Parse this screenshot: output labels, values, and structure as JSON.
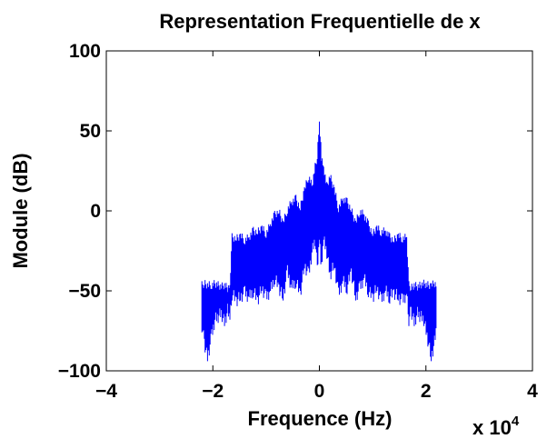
{
  "chart_data": {
    "type": "line",
    "title": "Representation Frequentielle de x",
    "xlabel": "Frequence (Hz)",
    "ylabel": "Module (dB)",
    "x_scale_label": {
      "base": "x 10",
      "exponent": "4"
    },
    "xlim": [
      -40000,
      40000
    ],
    "ylim": [
      -100,
      100
    ],
    "xticks": [
      -40000,
      -20000,
      0,
      20000,
      40000
    ],
    "xtick_labels": [
      "−4",
      "−2",
      "0",
      "2",
      "4"
    ],
    "yticks": [
      -100,
      -50,
      0,
      50,
      100
    ],
    "ytick_labels": [
      "−100",
      "−50",
      "0",
      "50",
      "100"
    ],
    "grid": false,
    "series_color": "#0000ff",
    "series": [
      {
        "x": [
          -22050,
          -21600,
          -21000,
          -20200,
          -19600,
          -19000,
          -18400,
          -17800,
          -17200,
          -16800,
          -16400,
          -15600,
          -14800,
          -14000,
          -13200,
          -12400,
          -11600,
          -10800,
          -10000,
          -9200,
          -8400,
          -7600,
          -6800,
          -6000,
          -5200,
          -4400,
          -3600,
          -2800,
          -2000,
          -1400,
          -800,
          -400,
          0,
          400,
          800,
          1400,
          2000,
          2800,
          3600,
          4400,
          5200,
          6000,
          6800,
          7600,
          8400,
          9200,
          10000,
          10800,
          11600,
          12400,
          13200,
          14000,
          14800,
          15600,
          16400,
          16800,
          17200,
          17800,
          18400,
          19000,
          19600,
          20200,
          21000,
          21600,
          22050
        ],
        "upper": [
          -44,
          -43,
          -44,
          -44,
          -43,
          -44,
          -45,
          -44,
          -46,
          -44,
          -14,
          -15,
          -13,
          -16,
          -14,
          -10,
          -11,
          -8,
          -12,
          -6,
          0,
          2,
          -5,
          3,
          8,
          10,
          4,
          16,
          24,
          18,
          30,
          36,
          57,
          36,
          30,
          18,
          24,
          16,
          4,
          10,
          8,
          3,
          -5,
          2,
          0,
          -6,
          -12,
          -8,
          -11,
          -10,
          -14,
          -16,
          -13,
          -15,
          -14,
          -44,
          -46,
          -44,
          -45,
          -44,
          -43,
          -44,
          -44,
          -43,
          -44
        ],
        "lower": [
          -76,
          -86,
          -96,
          -82,
          -72,
          -70,
          -68,
          -74,
          -66,
          -72,
          -56,
          -60,
          -58,
          -55,
          -58,
          -54,
          -60,
          -52,
          -58,
          -54,
          -46,
          -52,
          -58,
          -42,
          -52,
          -48,
          -56,
          -38,
          -44,
          -30,
          -22,
          -40,
          -20,
          -40,
          -22,
          -30,
          -44,
          -38,
          -56,
          -48,
          -52,
          -42,
          -58,
          -52,
          -46,
          -54,
          -58,
          -52,
          -60,
          -54,
          -58,
          -55,
          -58,
          -60,
          -56,
          -72,
          -66,
          -74,
          -68,
          -70,
          -72,
          -82,
          -96,
          -86,
          -76
        ]
      }
    ]
  }
}
